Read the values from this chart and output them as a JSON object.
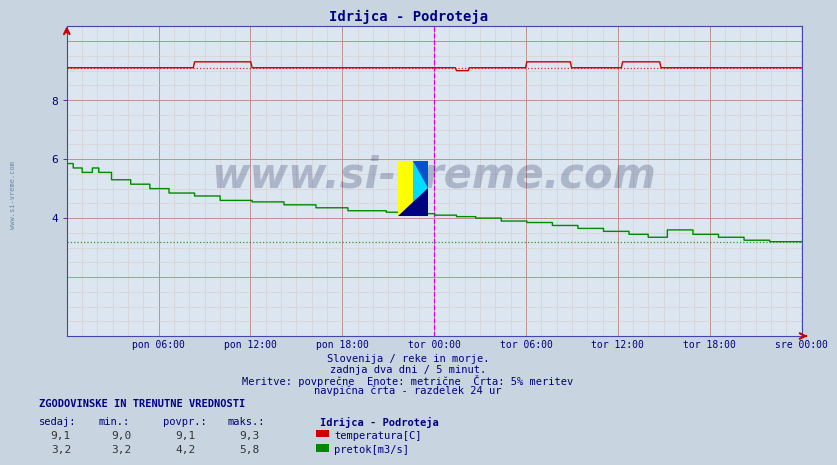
{
  "title": "Idrijca - Podroteja",
  "bg_color": "#c8d4e0",
  "plot_bg_color": "#dce6f0",
  "ylim": [
    0.0,
    10.5
  ],
  "yticks_major": [
    2,
    4,
    6,
    8,
    10
  ],
  "ytick_labels": [
    "",
    "4",
    "6",
    "8",
    ""
  ],
  "xlabel_ticks": [
    "pon 06:00",
    "pon 12:00",
    "pon 18:00",
    "tor 00:00",
    "tor 06:00",
    "tor 12:00",
    "tor 18:00",
    "sre 00:00"
  ],
  "n_points": 576,
  "temp_color": "#cc0000",
  "flow_color": "#008800",
  "temp_avg": 9.1,
  "temp_min": 9.0,
  "temp_max": 9.3,
  "flow_avg": 4.2,
  "flow_min": 3.2,
  "flow_max": 5.8,
  "watermark": "www.si-vreme.com",
  "subtitle1": "Slovenija / reke in morje.",
  "subtitle2": "zadnja dva dni / 5 minut.",
  "subtitle3": "Meritve: povprečne  Enote: metrične  Črta: 5% meritev",
  "subtitle4": "navpična črta - razdelek 24 ur",
  "legend_title": "Idrijca - Podroteja",
  "legend_label1": "temperatura[C]",
  "legend_label2": "pretok[m3/s]",
  "table_header": "ZGODOVINSKE IN TRENUTNE VREDNOSTI",
  "col_headers": [
    "sedaj:",
    "min.:",
    "povpr.:",
    "maks.:"
  ],
  "row1": [
    "9,1",
    "9,0",
    "9,1",
    "9,3"
  ],
  "row2": [
    "3,2",
    "3,2",
    "4,2",
    "5,8"
  ],
  "text_color": "#000080",
  "grid_major_color": "#c09090",
  "grid_minor_color": "#d8cccc"
}
